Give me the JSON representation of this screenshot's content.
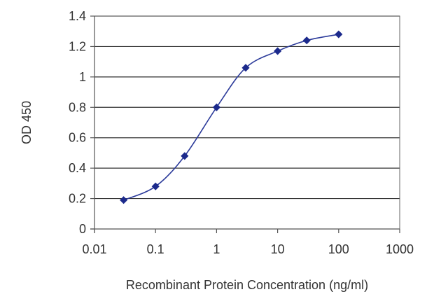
{
  "chart_data": {
    "type": "line",
    "title": "",
    "xlabel": "Recombinant Protein Concentration (ng/ml)",
    "ylabel": "OD 450",
    "x_scale": "log",
    "xlim": [
      0.01,
      1000
    ],
    "ylim": [
      0,
      1.4
    ],
    "x_ticks": [
      0.01,
      0.1,
      1,
      10,
      100,
      1000
    ],
    "x_tick_labels": [
      "0.01",
      "0.1",
      "1",
      "10",
      "100",
      "1000"
    ],
    "y_ticks": [
      0,
      0.2,
      0.4,
      0.6,
      0.8,
      1.0,
      1.2,
      1.4
    ],
    "y_tick_labels": [
      "0",
      "0.2",
      "0.4",
      "0.6",
      "0.8",
      "1",
      "1.2",
      "1.4"
    ],
    "grid": "horizontal",
    "legend": "none",
    "series": [
      {
        "x": [
          0.03,
          0.1,
          0.3,
          1,
          3,
          10,
          30,
          100
        ],
        "y": [
          0.19,
          0.28,
          0.48,
          0.8,
          1.06,
          1.17,
          1.24,
          1.28
        ],
        "color": "#2b3a9a"
      }
    ]
  }
}
